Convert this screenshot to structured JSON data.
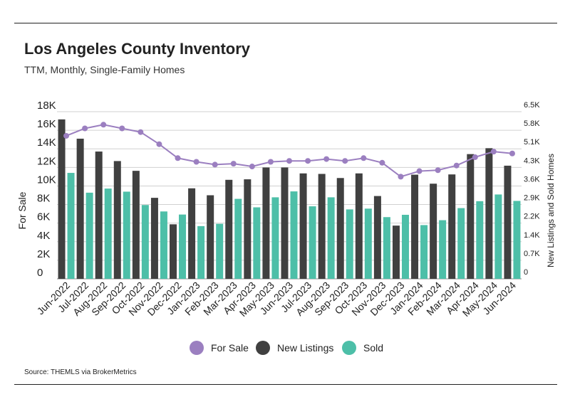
{
  "header": {
    "title": "Los Angeles County Inventory",
    "subtitle": "TTM, Monthly, Single-Family Homes"
  },
  "footer": {
    "source": "Source:  THEMLS via BrokerMetrics"
  },
  "colors": {
    "for_sale": "#9b7fc0",
    "new_listings": "#404040",
    "sold": "#4dbfa8",
    "grid": "#d0d0d0",
    "axis": "#222222"
  },
  "legend": [
    {
      "label": "For Sale",
      "color": "#9b7fc0"
    },
    {
      "label": "New Listings",
      "color": "#404040"
    },
    {
      "label": "Sold",
      "color": "#4dbfa8"
    }
  ],
  "chart_data": {
    "type": "bar",
    "categories": [
      "Jun-2022",
      "Jul-2022",
      "Aug-2022",
      "Sep-2022",
      "Oct-2022",
      "Nov-2022",
      "Dec-2022",
      "Jan-2023",
      "Feb-2023",
      "Mar-2023",
      "Apr-2023",
      "May-2023",
      "Jun-2023",
      "Jul-2023",
      "Aug-2023",
      "Sep-2023",
      "Oct-2023",
      "Nov-2023",
      "Dec-2023",
      "Jan-2024",
      "Feb-2024",
      "Mar-2024",
      "Apr-2024",
      "May-2024",
      "Jun-2024"
    ],
    "ylabel": "For Sale",
    "y2label": "New Listings and Sold Homes",
    "ylim": [
      0,
      18000
    ],
    "y2lim": [
      0,
      6500
    ],
    "yticks": [
      "0",
      "2K",
      "4K",
      "6K",
      "8K",
      "10K",
      "12K",
      "14K",
      "16K",
      "18K"
    ],
    "y2ticks": [
      "0",
      "0.7K",
      "1.4K",
      "2.2K",
      "2.9K",
      "3.6K",
      "4.3K",
      "5.1K",
      "5.8K",
      "6.5K"
    ],
    "grid": true,
    "legend_position": "bottom",
    "series": [
      {
        "name": "For Sale",
        "type": "line",
        "axis": "left",
        "values": [
          15400,
          16200,
          16600,
          16200,
          15800,
          14500,
          13000,
          12600,
          12300,
          12400,
          12100,
          12600,
          12700,
          12700,
          12900,
          12700,
          13000,
          12500,
          11000,
          11600,
          11700,
          12200,
          13100,
          13700,
          13500
        ]
      },
      {
        "name": "New Listings",
        "type": "bar",
        "axis": "right",
        "values": [
          6200,
          5450,
          4950,
          4580,
          4200,
          3150,
          2120,
          3520,
          3250,
          3850,
          3870,
          4330,
          4330,
          4100,
          4080,
          3920,
          4100,
          3220,
          2070,
          4050,
          3700,
          4060,
          4850,
          5080,
          4400
        ]
      },
      {
        "name": "Sold",
        "type": "bar",
        "axis": "right",
        "values": [
          4120,
          3350,
          3510,
          3390,
          2870,
          2620,
          2500,
          2050,
          2140,
          3110,
          2780,
          3170,
          3400,
          2820,
          3170,
          2700,
          2730,
          2400,
          2490,
          2090,
          2280,
          2750,
          3020,
          3280,
          3030
        ]
      }
    ]
  }
}
